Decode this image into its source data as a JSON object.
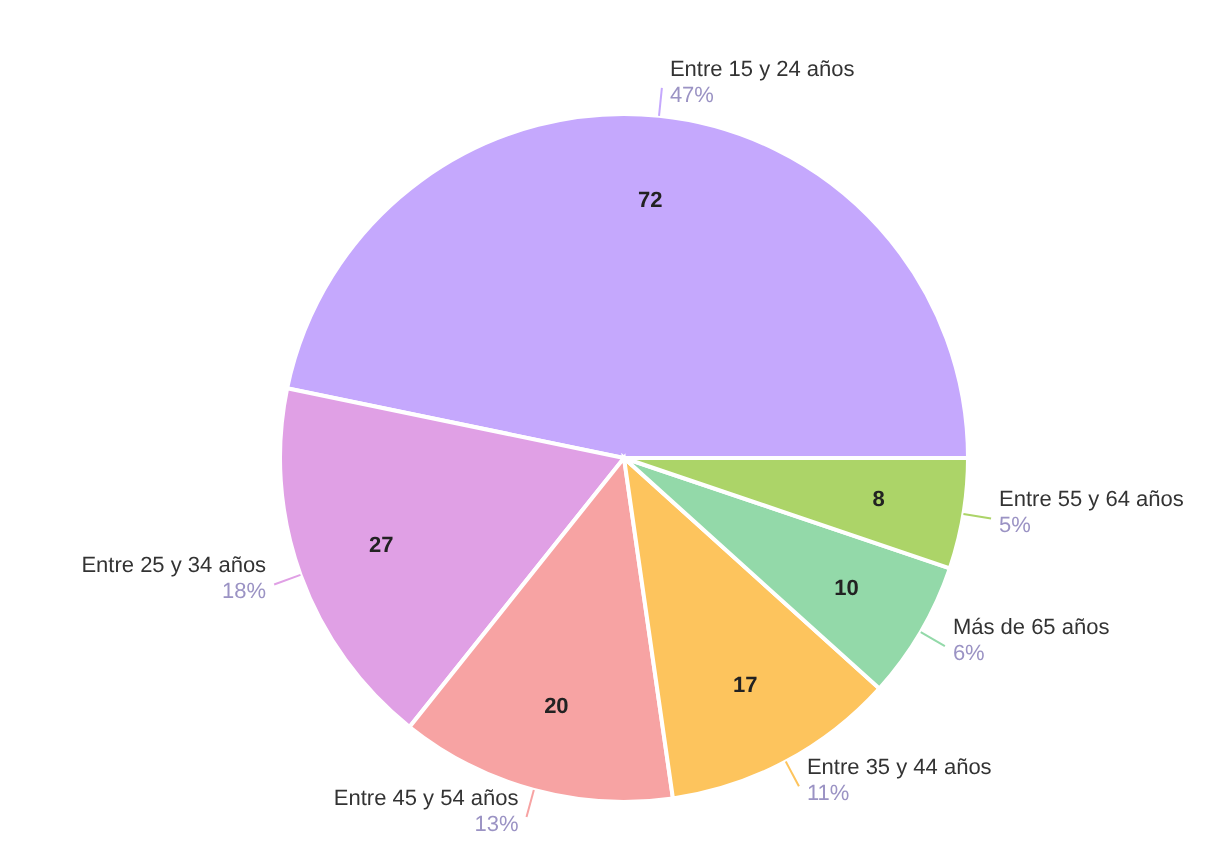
{
  "chart_data": {
    "type": "pie",
    "categories": [
      "Entre 15 y 24 años",
      "Entre 25 y 34 años",
      "Entre 45 y 54 años",
      "Entre 35 y 44 años",
      "Más de 65 años",
      "Entre 55 y 64 años"
    ],
    "values": [
      72,
      27,
      20,
      17,
      10,
      8
    ],
    "colors": [
      "#c5a8fd",
      "#e0a0e5",
      "#f7a3a3",
      "#fdc45d",
      "#93d9a9",
      "#acd468"
    ],
    "annotations": [
      "47%",
      "18%",
      "13%",
      "11%",
      "6%",
      "5%"
    ],
    "data_labels": true
  }
}
